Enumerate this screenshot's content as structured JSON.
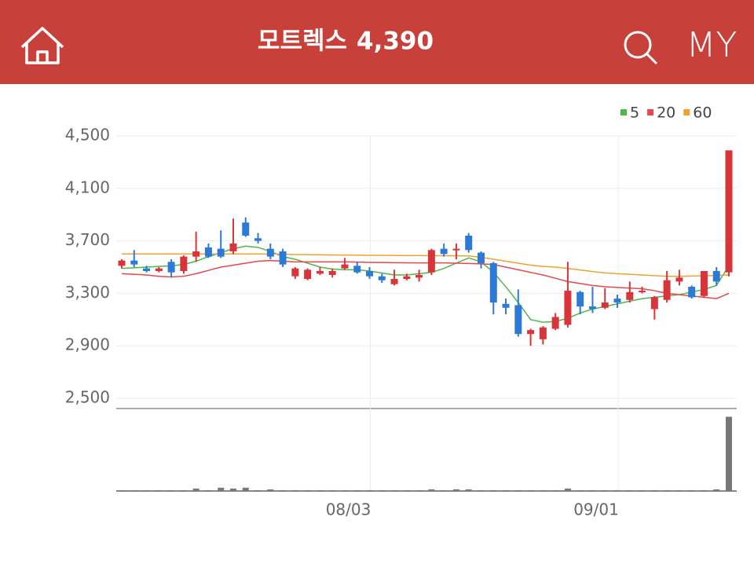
{
  "header": {
    "title": "모트렉스",
    "price": "4,390",
    "menu": "MY"
  },
  "chart_data": {
    "type": "candlestick",
    "categories": [
      null,
      null,
      null,
      null,
      null,
      null,
      null,
      null,
      null,
      null,
      null,
      null,
      null,
      null,
      null,
      null,
      null,
      null,
      null,
      null,
      "08/03",
      null,
      null,
      null,
      null,
      null,
      null,
      null,
      null,
      null,
      null,
      null,
      null,
      null,
      null,
      null,
      null,
      null,
      null,
      null,
      "09/01",
      null,
      null,
      null,
      null,
      null,
      null,
      null,
      null,
      null
    ],
    "open": [
      3510,
      3550,
      3490,
      3470,
      3540,
      3470,
      3580,
      3650,
      3640,
      3620,
      3840,
      3720,
      3640,
      3620,
      3430,
      3410,
      3450,
      3440,
      3490,
      3510,
      3470,
      3430,
      3370,
      3410,
      3420,
      3460,
      3640,
      3630,
      3740,
      3610,
      3530,
      3220,
      3210,
      2990,
      2950,
      3030,
      3060,
      3310,
      3200,
      3190,
      3260,
      3250,
      3310,
      3180,
      3250,
      3390,
      3350,
      3280,
      3470,
      3460
    ],
    "high": [
      3560,
      3630,
      3510,
      3500,
      3560,
      3590,
      3770,
      3680,
      3780,
      3870,
      3880,
      3760,
      3680,
      3640,
      3500,
      3490,
      3500,
      3490,
      3570,
      3540,
      3500,
      3450,
      3480,
      3450,
      3480,
      3640,
      3680,
      3680,
      3760,
      3620,
      3540,
      3260,
      3330,
      3030,
      3050,
      3150,
      3540,
      3320,
      3350,
      3340,
      3290,
      3390,
      3350,
      3280,
      3470,
      3480,
      3360,
      3470,
      3500,
      4390
    ],
    "low": [
      3490,
      3500,
      3460,
      3460,
      3420,
      3450,
      3540,
      3570,
      3570,
      3600,
      3730,
      3680,
      3560,
      3500,
      3410,
      3400,
      3440,
      3420,
      3480,
      3450,
      3410,
      3380,
      3360,
      3400,
      3390,
      3440,
      3580,
      3560,
      3610,
      3490,
      3140,
      3140,
      2970,
      2900,
      2910,
      3020,
      3040,
      3140,
      3150,
      3180,
      3190,
      3230,
      3300,
      3100,
      3230,
      3360,
      3260,
      3270,
      3360,
      3430
    ],
    "close": [
      3550,
      3520,
      3470,
      3490,
      3460,
      3580,
      3620,
      3580,
      3580,
      3680,
      3740,
      3700,
      3580,
      3520,
      3490,
      3480,
      3470,
      3470,
      3520,
      3460,
      3430,
      3400,
      3410,
      3430,
      3440,
      3630,
      3600,
      3640,
      3630,
      3530,
      3230,
      3190,
      2990,
      3020,
      3040,
      3120,
      3320,
      3200,
      3180,
      3230,
      3230,
      3310,
      3320,
      3270,
      3400,
      3420,
      3270,
      3470,
      3390,
      4390
    ],
    "volume": [
      1,
      1,
      1,
      1,
      1,
      1,
      3,
      1,
      4,
      3,
      4,
      1,
      2,
      1,
      1,
      1,
      1,
      1,
      1,
      1,
      1,
      1,
      1,
      1,
      1,
      2,
      1,
      2,
      2,
      1,
      1,
      1,
      1,
      1,
      1,
      1,
      3,
      1,
      1,
      1,
      1,
      1,
      1,
      1,
      1,
      1,
      1,
      1,
      2,
      90
    ],
    "series": [
      {
        "name": "5",
        "color": "#4cb848",
        "values": [
          3490,
          3495,
          3500,
          3505,
          3510,
          3520,
          3545,
          3580,
          3610,
          3640,
          3660,
          3650,
          3620,
          3580,
          3560,
          3530,
          3500,
          3485,
          3480,
          3480,
          3470,
          3455,
          3440,
          3440,
          3450,
          3460,
          3490,
          3530,
          3570,
          3540,
          3460,
          3350,
          3230,
          3100,
          3080,
          3085,
          3110,
          3150,
          3180,
          3200,
          3220,
          3240,
          3260,
          3270,
          3280,
          3290,
          3310,
          3330,
          3360,
          3510
        ]
      },
      {
        "name": "20",
        "color": "#e8464a",
        "values": [
          3450,
          3445,
          3440,
          3430,
          3425,
          3430,
          3450,
          3475,
          3500,
          3515,
          3530,
          3545,
          3550,
          3545,
          3540,
          3540,
          3540,
          3540,
          3540,
          3538,
          3536,
          3535,
          3534,
          3533,
          3532,
          3532,
          3532,
          3530,
          3528,
          3525,
          3520,
          3500,
          3480,
          3460,
          3440,
          3415,
          3390,
          3375,
          3360,
          3350,
          3345,
          3340,
          3335,
          3320,
          3300,
          3290,
          3280,
          3270,
          3260,
          3300
        ]
      },
      {
        "name": "60",
        "color": "#f0a030",
        "values": [
          3600,
          3600,
          3600,
          3600,
          3600,
          3600,
          3600,
          3600,
          3600,
          3600,
          3600,
          3600,
          3600,
          3598,
          3596,
          3595,
          3594,
          3593,
          3592,
          3591,
          3590,
          3590,
          3589,
          3588,
          3588,
          3587,
          3587,
          3586,
          3585,
          3575,
          3560,
          3545,
          3530,
          3515,
          3505,
          3500,
          3490,
          3478,
          3466,
          3456,
          3450,
          3445,
          3440,
          3435,
          3430,
          3430,
          3432,
          3434,
          3436,
          3440
        ]
      }
    ],
    "ylim": [
      2500,
      4500
    ],
    "yticks": [
      {
        "value": 4500,
        "label": "4,500"
      },
      {
        "value": 4100,
        "label": "4,100"
      },
      {
        "value": 3700,
        "label": "3,700"
      },
      {
        "value": 3300,
        "label": "3,300"
      },
      {
        "value": 2900,
        "label": "2,900"
      },
      {
        "value": 2500,
        "label": "2,500"
      }
    ],
    "vlim": [
      0,
      100
    ],
    "up_color": "#d8343a",
    "down_color": "#2d7ad6",
    "grid": true
  }
}
